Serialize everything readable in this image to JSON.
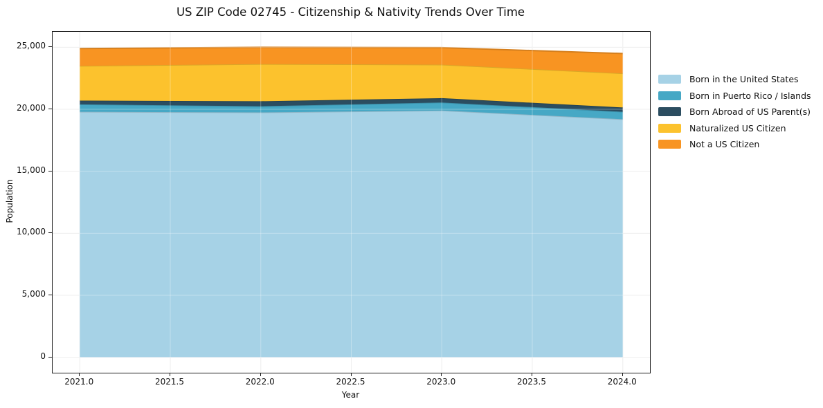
{
  "figure": {
    "background": "#ffffff"
  },
  "chart_data": {
    "type": "area",
    "stacked": true,
    "title": "US ZIP Code 02745 - Citizenship & Nativity Trends Over Time",
    "xlabel": "Year",
    "ylabel": "Population",
    "x": [
      2021,
      2022,
      2023,
      2024
    ],
    "series": [
      {
        "name": "Born in the United States",
        "color": "#a6d2e6",
        "values": [
          19800,
          19750,
          19900,
          19200
        ]
      },
      {
        "name": "Born in Puerto Rico / Islands",
        "color": "#46a8c5",
        "values": [
          600,
          500,
          650,
          600
        ]
      },
      {
        "name": "Born Abroad of US Parent(s)",
        "color": "#2b4d60",
        "values": [
          300,
          400,
          350,
          350
        ]
      },
      {
        "name": "Naturalized US Citizen",
        "color": "#fcc22d",
        "values": [
          2800,
          3000,
          2700,
          2750
        ]
      },
      {
        "name": "Not a US Citizen",
        "color": "#f89422",
        "values": [
          1400,
          1350,
          1370,
          1600
        ]
      }
    ],
    "stacked_totals": [
      24900,
      25000,
      24970,
      24500
    ],
    "x_tick_values": [
      2021.0,
      2021.5,
      2022.0,
      2022.5,
      2023.0,
      2023.5,
      2024.0
    ],
    "x_tick_labels": [
      "2021.0",
      "2021.5",
      "2022.0",
      "2022.5",
      "2023.0",
      "2023.5",
      "2024.0"
    ],
    "y_tick_values": [
      0,
      5000,
      10000,
      15000,
      20000,
      25000
    ],
    "y_tick_labels": [
      "0",
      "5,000",
      "10,000",
      "15,000",
      "20,000",
      "25,000"
    ],
    "xlim": [
      2020.85,
      2024.15
    ],
    "ylim": [
      -1250,
      26250
    ],
    "grid": true,
    "legend_position": "right"
  },
  "colors": {
    "grid": "#e7e7e7",
    "grid_over_area": "rgba(255,255,255,0.32)",
    "spine": "#1a1a1a",
    "text": "#111111"
  }
}
